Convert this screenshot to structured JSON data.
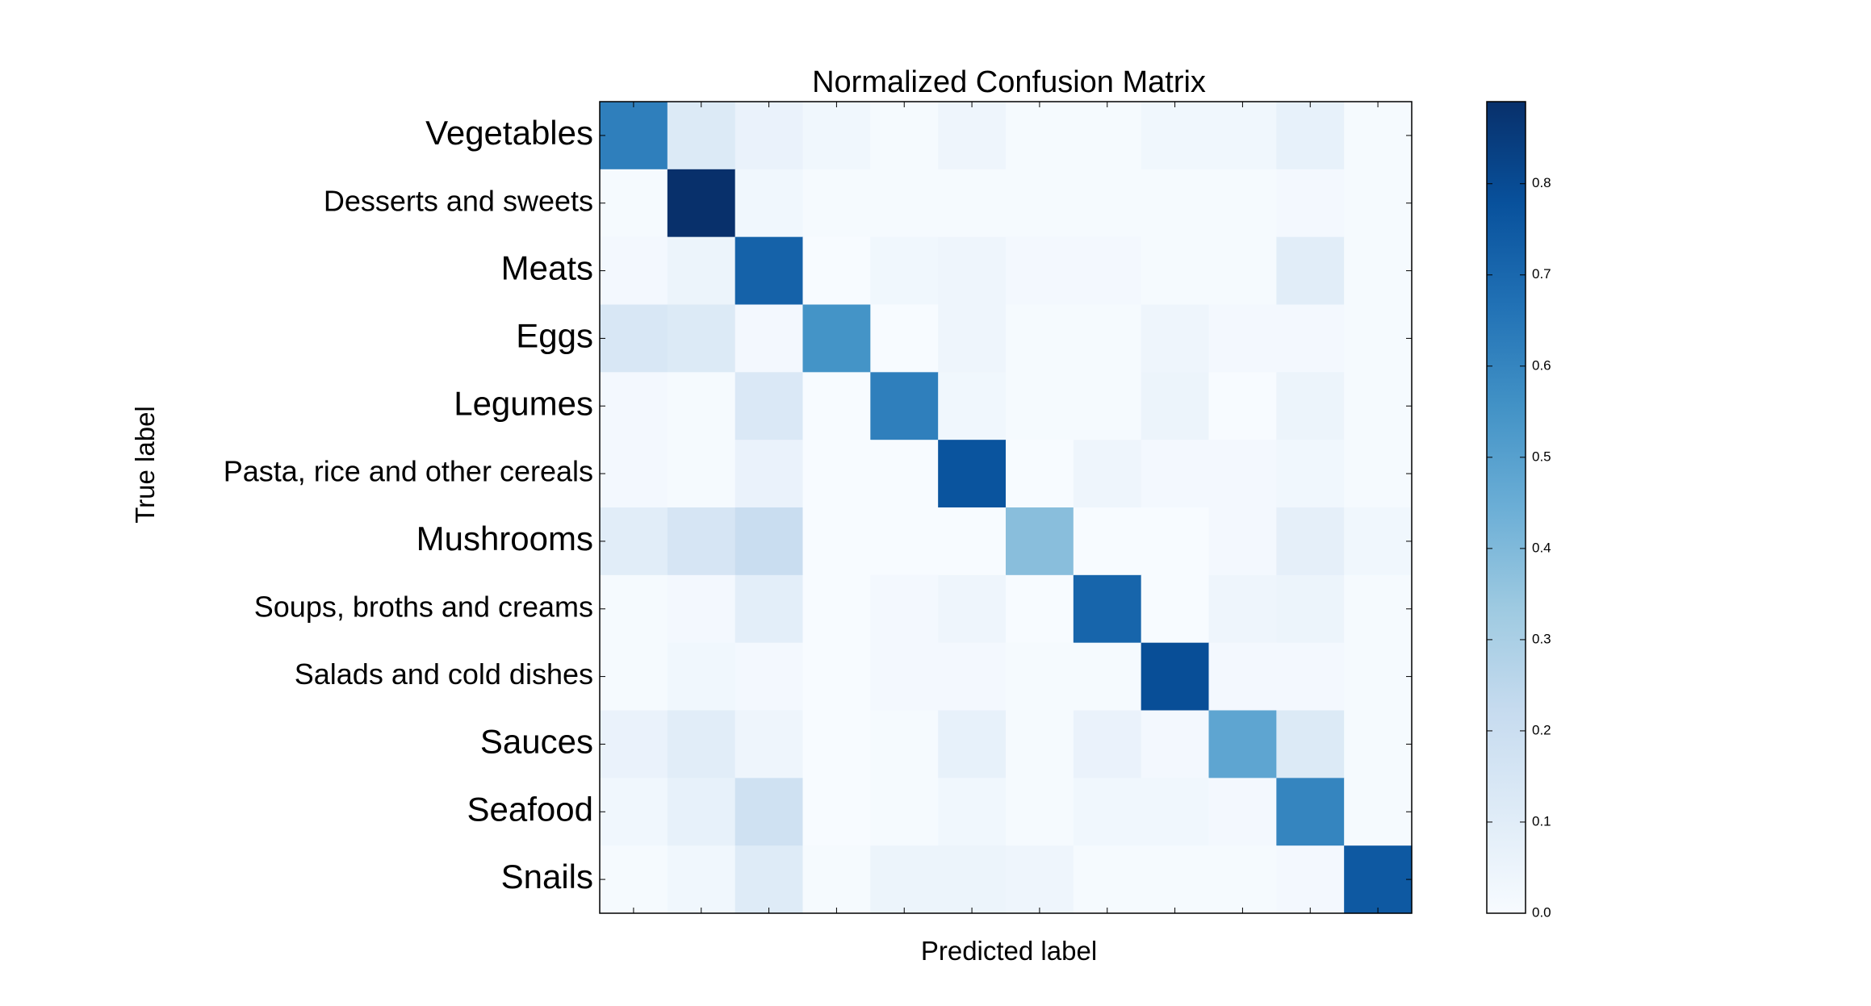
{
  "chart_data": {
    "type": "heatmap",
    "title": "Normalized Confusion Matrix",
    "xlabel": "Predicted label",
    "ylabel": "True label",
    "categories": [
      "Vegetables",
      "Desserts and sweets",
      "Meats",
      "Eggs",
      "Legumes",
      "Pasta, rice and other cereals",
      "Mushrooms",
      "Soups, broths and creams",
      "Salads and cold dishes",
      "Sauces",
      "Seafood",
      "Snails"
    ],
    "values": [
      [
        0.62,
        0.12,
        0.06,
        0.03,
        0.01,
        0.04,
        0.01,
        0.01,
        0.03,
        0.03,
        0.07,
        0.01
      ],
      [
        0.01,
        0.89,
        0.03,
        0.01,
        0.01,
        0.01,
        0.01,
        0.01,
        0.01,
        0.01,
        0.02,
        0.01
      ],
      [
        0.02,
        0.05,
        0.72,
        0.0,
        0.03,
        0.04,
        0.02,
        0.02,
        0.01,
        0.01,
        0.1,
        0.01
      ],
      [
        0.14,
        0.12,
        0.02,
        0.55,
        0.0,
        0.04,
        0.01,
        0.01,
        0.04,
        0.02,
        0.02,
        0.01
      ],
      [
        0.02,
        0.01,
        0.13,
        0.0,
        0.62,
        0.03,
        0.01,
        0.01,
        0.05,
        0.0,
        0.05,
        0.01
      ],
      [
        0.02,
        0.01,
        0.06,
        0.0,
        0.0,
        0.77,
        0.0,
        0.04,
        0.02,
        0.02,
        0.03,
        0.01
      ],
      [
        0.1,
        0.15,
        0.21,
        0.0,
        0.0,
        0.0,
        0.38,
        0.0,
        0.0,
        0.02,
        0.08,
        0.03
      ],
      [
        0.01,
        0.02,
        0.09,
        0.0,
        0.02,
        0.04,
        0.0,
        0.71,
        0.0,
        0.04,
        0.05,
        0.01
      ],
      [
        0.01,
        0.03,
        0.02,
        0.0,
        0.02,
        0.02,
        0.01,
        0.01,
        0.79,
        0.02,
        0.02,
        0.01
      ],
      [
        0.06,
        0.1,
        0.04,
        0.0,
        0.01,
        0.07,
        0.01,
        0.06,
        0.02,
        0.48,
        0.12,
        0.01
      ],
      [
        0.03,
        0.07,
        0.18,
        0.0,
        0.01,
        0.03,
        0.01,
        0.03,
        0.03,
        0.02,
        0.6,
        0.01
      ],
      [
        0.01,
        0.03,
        0.11,
        0.01,
        0.05,
        0.05,
        0.04,
        0.01,
        0.01,
        0.01,
        0.02,
        0.75
      ]
    ],
    "colormap": "Blues",
    "colorbar": {
      "range": [
        0.0,
        0.89
      ],
      "ticks": [
        0.0,
        0.1,
        0.2,
        0.3,
        0.4,
        0.5,
        0.6,
        0.7,
        0.8
      ],
      "tick_labels": [
        "0.0",
        "0.1",
        "0.2",
        "0.3",
        "0.4",
        "0.5",
        "0.6",
        "0.7",
        "0.8"
      ]
    },
    "xticklabels_visible": false,
    "grid": false
  }
}
